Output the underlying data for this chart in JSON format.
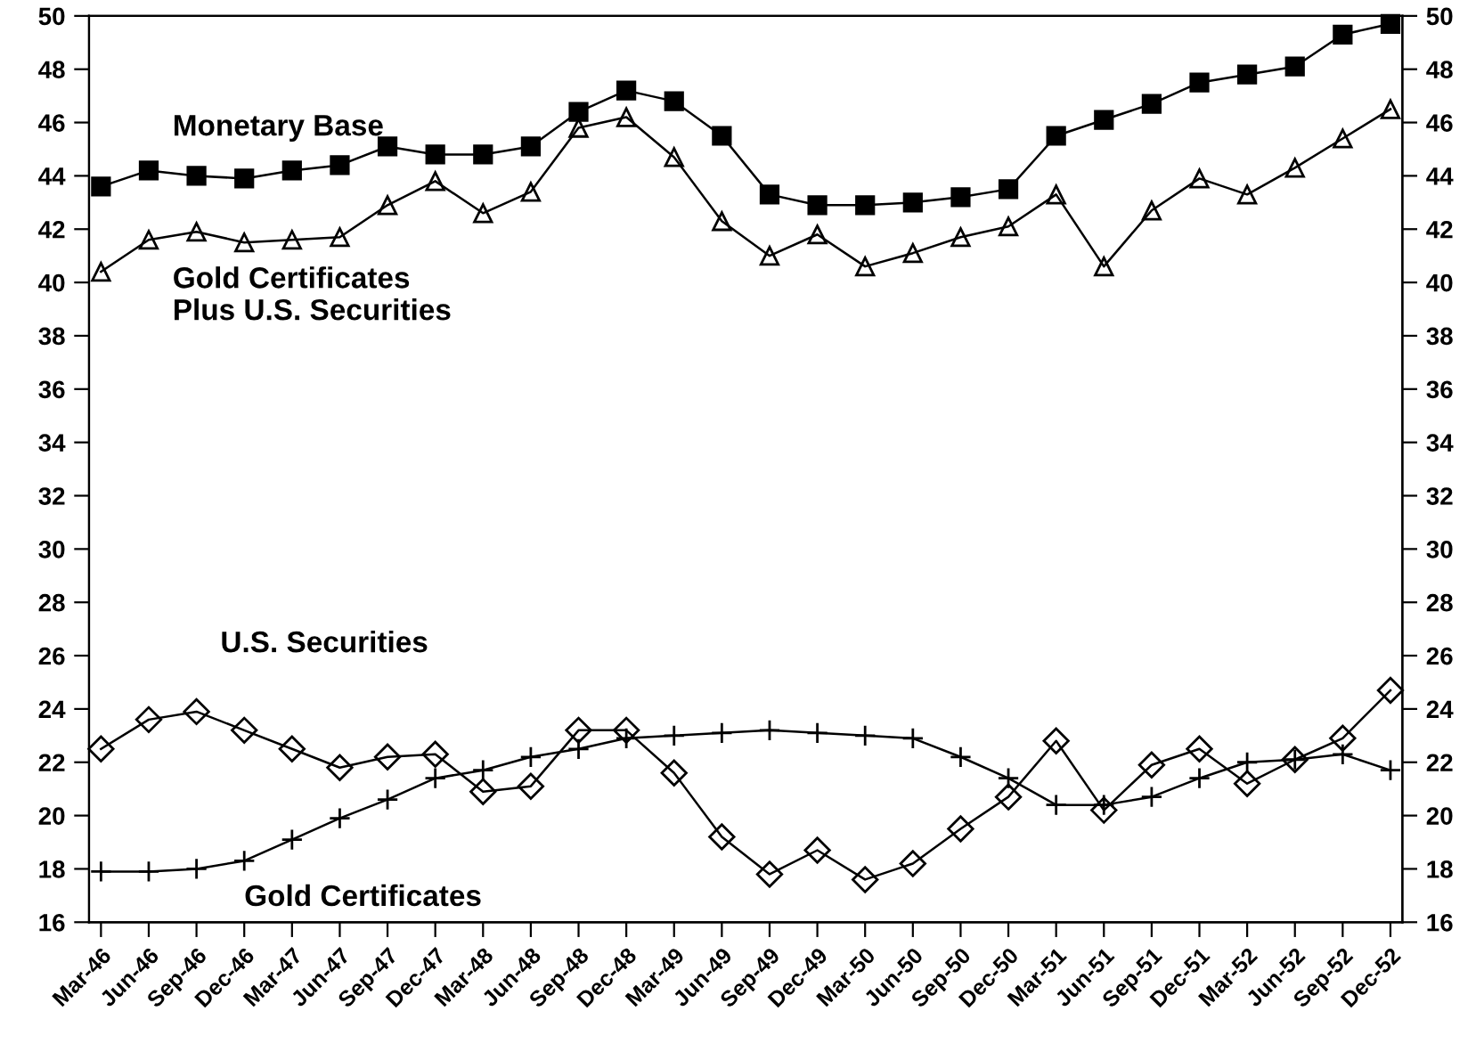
{
  "chart_data": {
    "type": "line",
    "categories": [
      "Mar-46",
      "Jun-46",
      "Sep-46",
      "Dec-46",
      "Mar-47",
      "Jun-47",
      "Sep-47",
      "Dec-47",
      "Mar-48",
      "Jun-48",
      "Sep-48",
      "Dec-48",
      "Mar-49",
      "Jun-49",
      "Sep-49",
      "Dec-49",
      "Mar-50",
      "Jun-50",
      "Sep-50",
      "Dec-50",
      "Mar-51",
      "Jun-51",
      "Sep-51",
      "Dec-51",
      "Mar-52",
      "Jun-52",
      "Sep-52",
      "Dec-52"
    ],
    "series": [
      {
        "name": "Monetary Base",
        "color": "#000000",
        "marker": "square",
        "values": [
          43.6,
          44.2,
          44.0,
          43.9,
          44.2,
          44.4,
          45.1,
          44.8,
          44.8,
          45.1,
          46.4,
          47.2,
          46.8,
          45.5,
          43.3,
          42.9,
          42.9,
          43.0,
          43.2,
          43.5,
          45.5,
          46.1,
          46.7,
          47.5,
          47.8,
          48.1,
          49.3,
          49.7
        ]
      },
      {
        "name": "Gold Certificates\nPlus U.S. Securities",
        "color": "#000000",
        "marker": "triangle",
        "values": [
          40.4,
          41.6,
          41.9,
          41.5,
          41.6,
          41.7,
          42.9,
          43.8,
          42.6,
          43.4,
          45.8,
          46.2,
          44.7,
          42.3,
          41.0,
          41.8,
          40.6,
          41.1,
          41.7,
          42.1,
          43.3,
          40.6,
          42.7,
          43.9,
          43.3,
          44.3,
          45.4,
          46.5
        ]
      },
      {
        "name": "U.S. Securities",
        "color": "#000000",
        "marker": "diamond",
        "values": [
          22.5,
          23.6,
          23.9,
          23.2,
          22.5,
          21.8,
          22.2,
          22.3,
          20.9,
          21.1,
          23.2,
          23.2,
          21.6,
          19.2,
          17.8,
          18.7,
          17.6,
          18.2,
          19.5,
          20.7,
          22.8,
          20.2,
          21.9,
          22.5,
          21.2,
          22.1,
          22.9,
          24.7
        ]
      },
      {
        "name": "Gold Certificates",
        "color": "#000000",
        "marker": "cross",
        "values": [
          17.9,
          17.9,
          18.0,
          18.3,
          19.1,
          19.9,
          20.6,
          21.4,
          21.7,
          22.2,
          22.5,
          22.9,
          23.0,
          23.1,
          23.2,
          23.1,
          23.0,
          22.9,
          22.2,
          21.4,
          20.4,
          20.4,
          20.7,
          21.4,
          22.0,
          22.1,
          22.3,
          21.7
        ]
      }
    ],
    "ylim": [
      16,
      50
    ],
    "yticks": [
      16,
      18,
      20,
      22,
      24,
      26,
      28,
      30,
      32,
      34,
      36,
      38,
      40,
      42,
      44,
      46,
      48,
      50
    ],
    "y2lim": [
      16,
      50
    ],
    "y2ticks": [
      16,
      18,
      20,
      22,
      24,
      26,
      28,
      30,
      32,
      34,
      36,
      38,
      40,
      42,
      44,
      46,
      48,
      50
    ],
    "grid": false,
    "legend": false
  }
}
